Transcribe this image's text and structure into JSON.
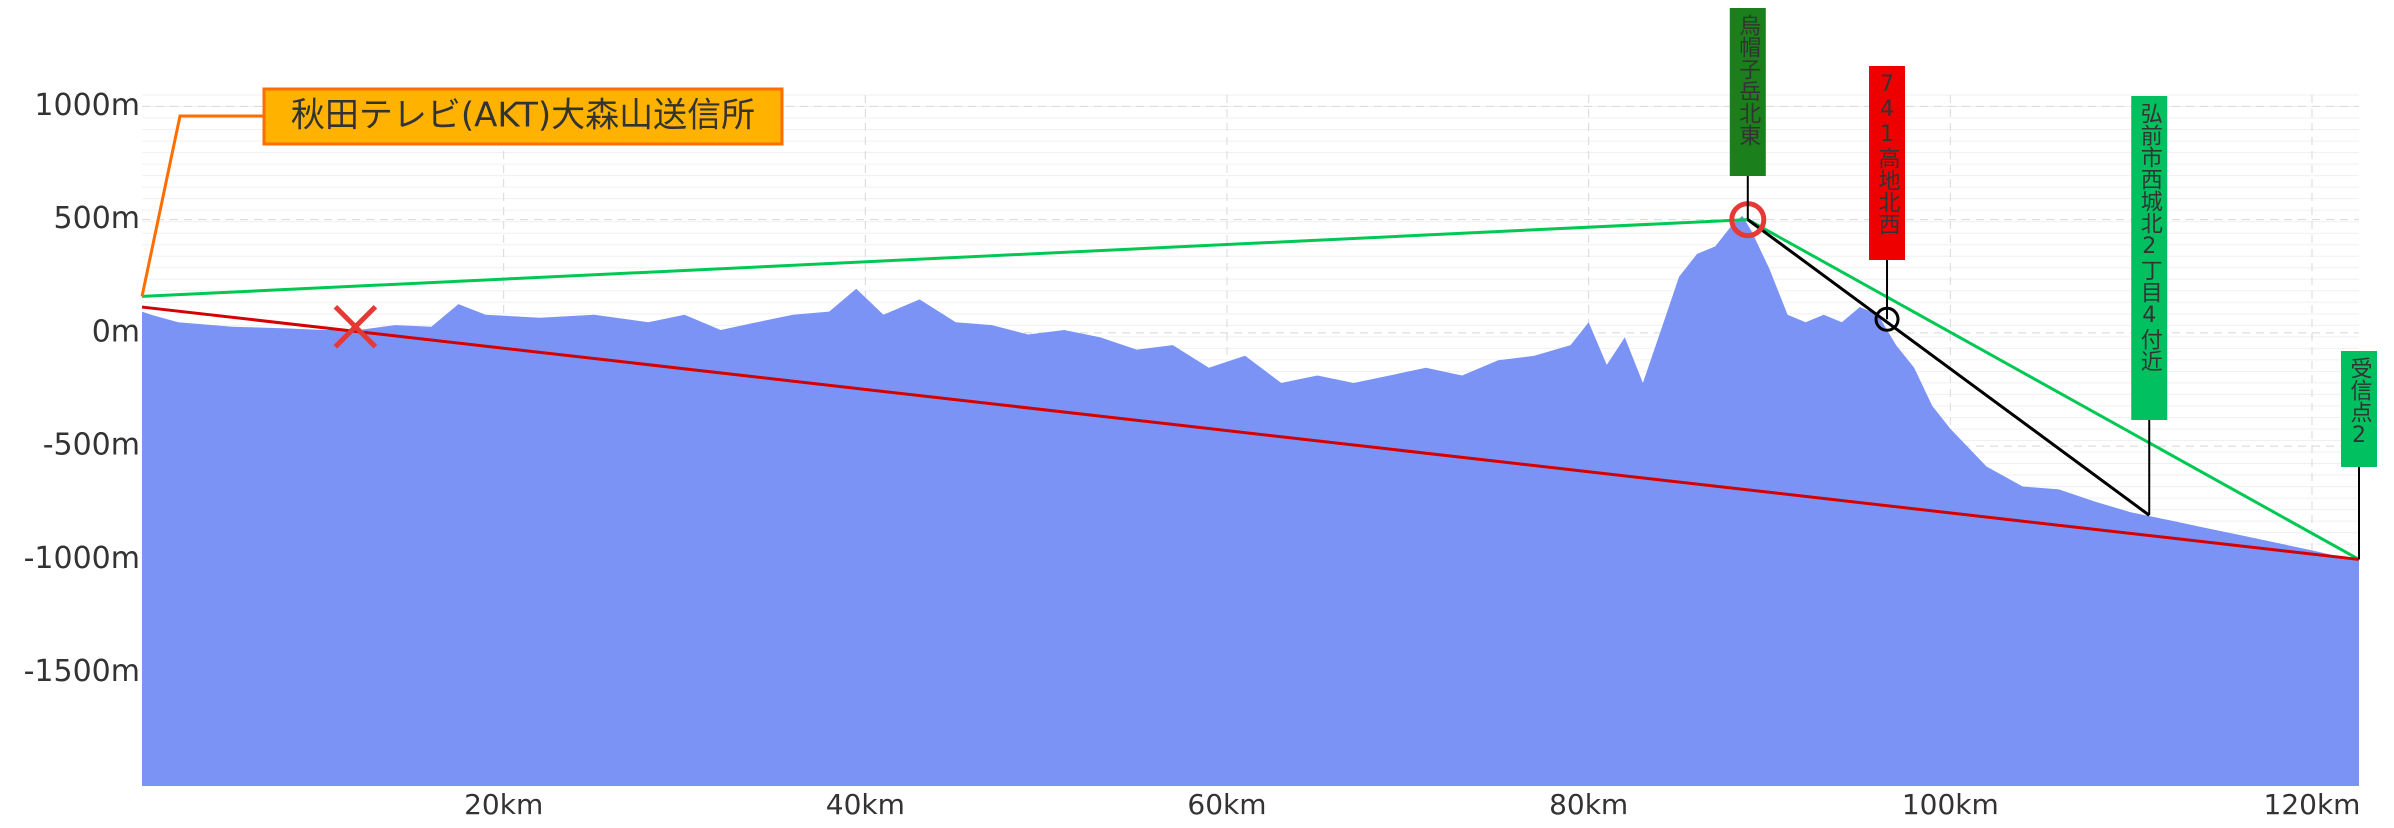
{
  "chart_data": {
    "type": "area",
    "color": "#7b93f5",
    "x": [
      0,
      0.5,
      2,
      5,
      8,
      10,
      12,
      14,
      16,
      17.5,
      19,
      22,
      25,
      28,
      30,
      32,
      34,
      36,
      38,
      39.5,
      41,
      43,
      45,
      47,
      49,
      51,
      53,
      55,
      57,
      59,
      61,
      63,
      65,
      67,
      69,
      71,
      73,
      75,
      77,
      79,
      80,
      81,
      82,
      83,
      84,
      85,
      86,
      87,
      88,
      88.5,
      89,
      90,
      91,
      92,
      93,
      94,
      95,
      96,
      97,
      98,
      99,
      100,
      102,
      104,
      106,
      108,
      110,
      112,
      114,
      116,
      118,
      120,
      122.6
    ],
    "values": [
      94,
      80,
      47,
      27,
      20,
      13,
      13,
      34,
      27,
      127,
      80,
      67,
      80,
      47,
      80,
      13,
      47,
      80,
      94,
      195,
      80,
      148,
      47,
      34,
      -7,
      13,
      -20,
      -74,
      -54,
      -154,
      -101,
      -221,
      -188,
      -221,
      -188,
      -154,
      -188,
      -121,
      -101,
      -54,
      47,
      -141,
      -20,
      -221,
      13,
      248,
      349,
      382,
      483,
      517,
      450,
      282,
      80,
      47,
      80,
      47,
      114,
      80,
      -54,
      -154,
      -322,
      -423,
      -590,
      -678,
      -691,
      -745,
      -792,
      -825,
      -859,
      -892,
      -926,
      -960,
      -1007
    ],
    "xlim": [
      0,
      122.6
    ],
    "ylim": [
      -2000,
      1050
    ],
    "xticks": [
      {
        "value": 20,
        "label": "20km"
      },
      {
        "value": 40,
        "label": "40km"
      },
      {
        "value": 60,
        "label": "60km"
      },
      {
        "value": 80,
        "label": "80km"
      },
      {
        "value": 100,
        "label": "100km"
      },
      {
        "value": 120,
        "label": "120km"
      }
    ],
    "yticks": [
      {
        "value": 1000,
        "label": "1000m"
      },
      {
        "value": 500,
        "label": "500m"
      },
      {
        "value": 0,
        "label": "0m"
      },
      {
        "value": -500,
        "label": "-500m"
      },
      {
        "value": -1000,
        "label": "-1000m"
      },
      {
        "value": -1500,
        "label": "-1500m"
      }
    ],
    "grid": true,
    "lines": [
      {
        "color": "#00c853",
        "x": [
          0,
          88.8,
          122.6
        ],
        "values": [
          161,
          500,
          -1000
        ]
      },
      {
        "color": "#d50000",
        "x": [
          0,
          122.6
        ],
        "values": [
          114,
          -1000
        ]
      },
      {
        "color": "#000000",
        "x": [
          88.8,
          111
        ],
        "values": [
          500,
          -805
        ]
      }
    ],
    "transmitter": {
      "label": "秋田テレビ(AKT)大森山送信所",
      "x": 0,
      "y": 161
    },
    "cross": {
      "x": 11.8,
      "y": 27,
      "color": "#e53935"
    },
    "circles": [
      {
        "x": 88.8,
        "y": 500,
        "color": "#e53935"
      },
      {
        "x": 96.5,
        "y": 60,
        "color": "#000000"
      }
    ],
    "markers": [
      {
        "label": "烏帽子岳北東",
        "color": "#1b7f1b",
        "x": 88.8,
        "y": 500
      },
      {
        "label": "741高地北西",
        "color": "#ee0000",
        "x": 96.5,
        "y": 60
      },
      {
        "label": "弘前市西城北2丁目4付近",
        "color": "#00c060",
        "x": 111,
        "y": -805
      },
      {
        "label": "受信点2",
        "color": "#00c060",
        "x": 122.6,
        "y": -1000
      }
    ]
  }
}
